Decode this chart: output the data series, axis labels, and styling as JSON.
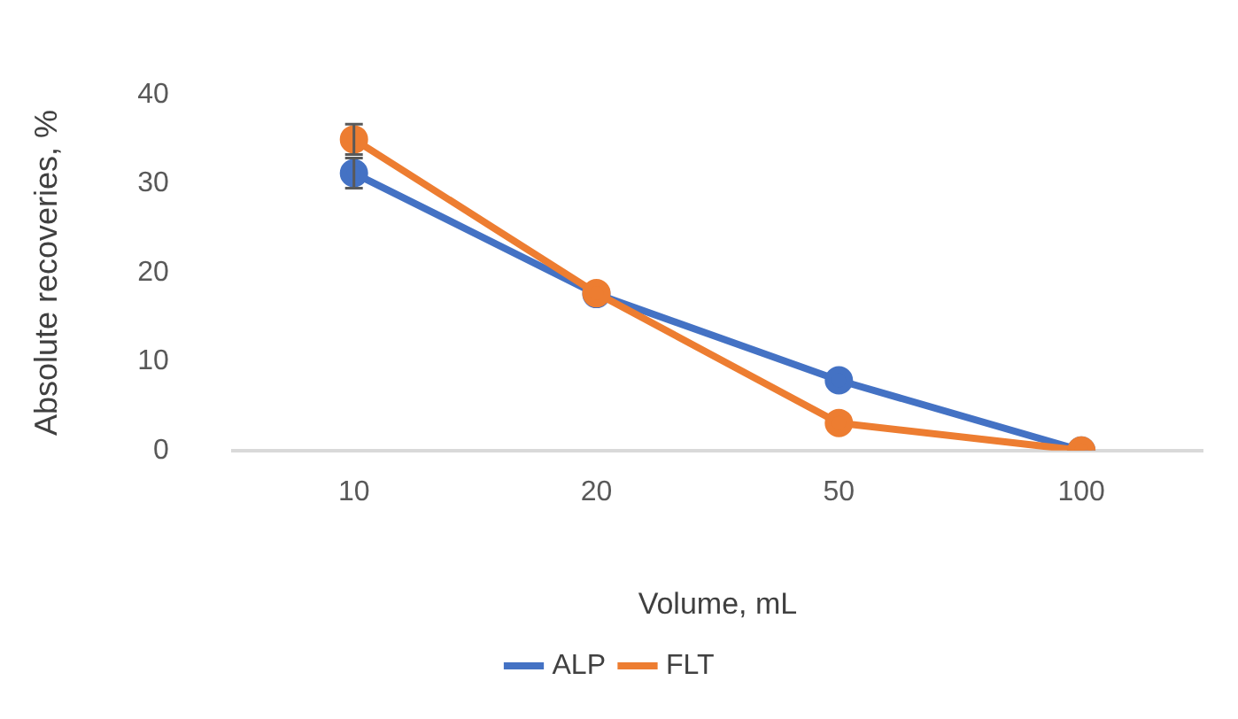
{
  "chart_data": {
    "type": "line",
    "categories": [
      "10",
      "20",
      "50",
      "100"
    ],
    "series": [
      {
        "name": "ALP",
        "color": "#4472c4",
        "values": [
          31.2,
          17.6,
          7.9,
          0
        ],
        "errors": [
          1.7,
          null,
          null,
          null
        ]
      },
      {
        "name": "FLT",
        "color": "#ed7d31",
        "values": [
          35.0,
          17.7,
          3.1,
          0
        ],
        "errors": [
          1.7,
          null,
          null,
          null
        ]
      }
    ],
    "xlabel": "Volume, mL",
    "ylabel": "Absolute recoveries, %",
    "ylim": [
      0,
      40
    ],
    "yticks": [
      0,
      10,
      20,
      30,
      40
    ],
    "grid": false,
    "legend": "bottom",
    "marker": "circle",
    "line_style": "solid"
  }
}
